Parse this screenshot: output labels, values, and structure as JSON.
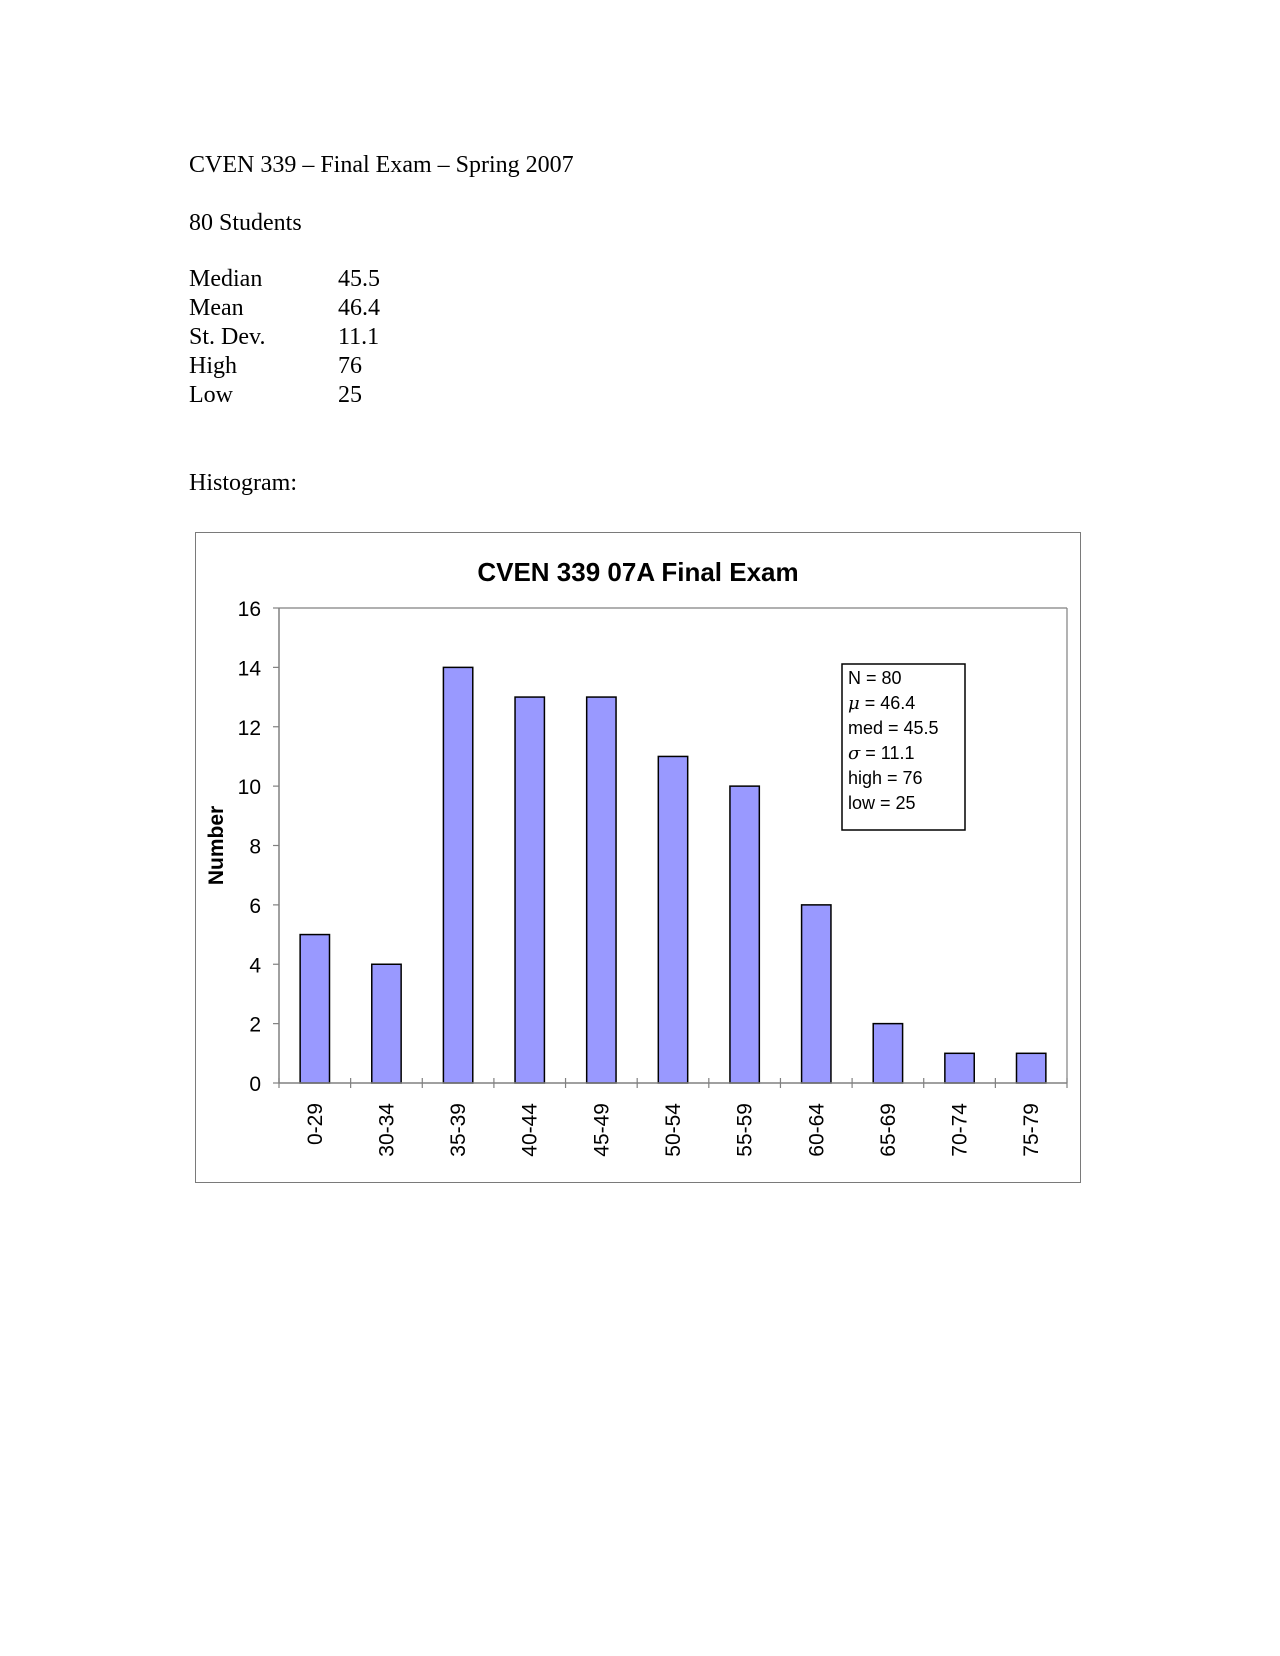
{
  "document": {
    "title": "CVEN 339 – Final Exam – Spring 2007",
    "student_count": "80 Students",
    "stats": [
      {
        "label": "Median",
        "value": "45.5"
      },
      {
        "label": "Mean",
        "value": "46.4"
      },
      {
        "label": "St. Dev.",
        "value": "11.1"
      },
      {
        "label": "High",
        "value": "76"
      },
      {
        "label": "Low",
        "value": "25"
      }
    ],
    "histogram_heading": "Histogram:"
  },
  "chart_data": {
    "type": "bar",
    "title": "CVEN 339 07A Final Exam",
    "xlabel": "",
    "ylabel": "Number",
    "ylim": [
      0,
      16
    ],
    "yticks": [
      0,
      2,
      4,
      6,
      8,
      10,
      12,
      14,
      16
    ],
    "categories": [
      "0-29",
      "30-34",
      "35-39",
      "40-44",
      "45-49",
      "50-54",
      "55-59",
      "60-64",
      "65-69",
      "70-74",
      "75-79"
    ],
    "values": [
      5,
      4,
      14,
      13,
      13,
      11,
      10,
      6,
      2,
      1,
      1
    ],
    "bar_color": "#9999ff",
    "grid": false,
    "annotation_box": {
      "placement": "top-right",
      "lines": [
        {
          "symbol": "",
          "text": "N = 80"
        },
        {
          "symbol": "μ",
          "text": " = 46.4"
        },
        {
          "symbol": "",
          "text": "med = 45.5"
        },
        {
          "symbol": "σ",
          "text": " = 11.1"
        },
        {
          "symbol": "",
          "text": "high = 76"
        },
        {
          "symbol": "",
          "text": "low = 25"
        }
      ]
    }
  }
}
